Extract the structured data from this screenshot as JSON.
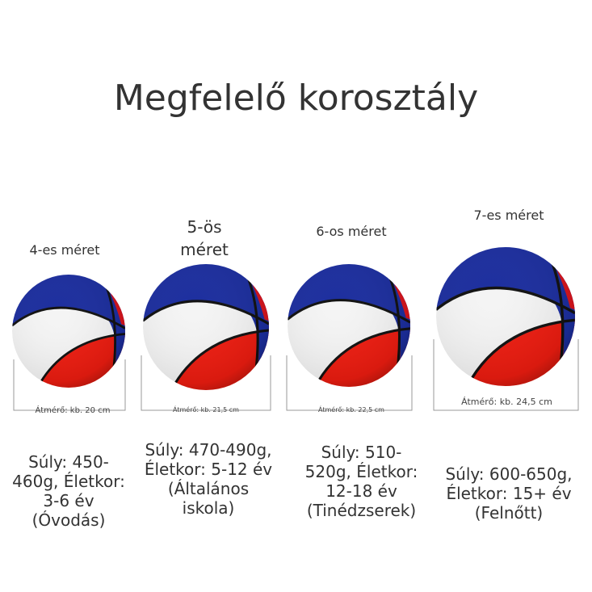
{
  "title": "Megfelelő korosztály",
  "items": [
    {
      "size": "4-es méret",
      "diameter": "Átmérő: kb. 20 cm",
      "description": "Súly: 450-460g, Életkor: 3-6 év (Óvodás)"
    },
    {
      "size": "5-ös méret",
      "diameter": "Átmérő: kb. 21,5 cm",
      "description": "Súly: 470-490g, Életkor: 5-12 év (Általános iskola)"
    },
    {
      "size": "6-os méret",
      "diameter": "Átmérő: kb. 22,5 cm",
      "description": "Súly: 510-520g, Életkor: 12-18 év (Tinédzserek)"
    },
    {
      "size": "7-es méret",
      "diameter": "Átmérő: kb. 24,5 cm",
      "description": "Súly: 600-650g, Életkor: 15+ év (Felnőtt)"
    }
  ]
}
